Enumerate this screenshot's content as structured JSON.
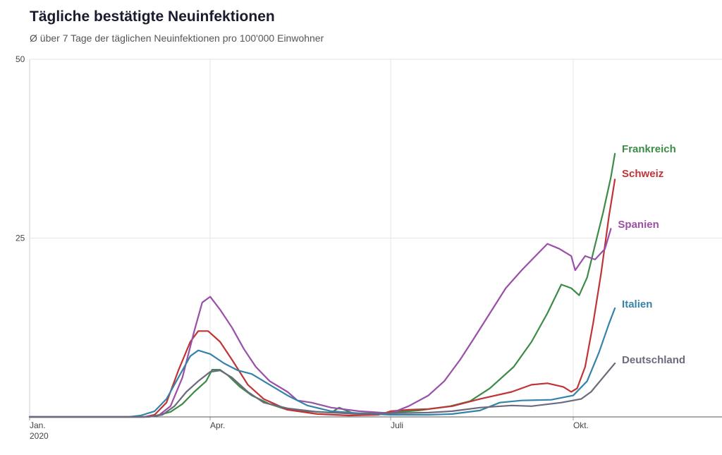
{
  "title": "Tägliche bestätigte Neuinfektionen",
  "subtitle": "Ø über 7 Tage der täglichen Neuinfektionen pro 100'000 Einwohner",
  "chart_data": {
    "type": "line",
    "title": "Tägliche bestätigte Neuinfektionen",
    "subtitle": "Ø über 7 Tage der täglichen Neuinfektionen pro 100'000 Einwohner",
    "ylim": [
      0,
      50
    ],
    "y_ticks": [
      {
        "value": 25,
        "label": "25"
      },
      {
        "value": 50,
        "label": "50"
      }
    ],
    "xlim": [
      "2020-01-01",
      "2020-12-15"
    ],
    "x_ticks": [
      {
        "date": "2020-01-01",
        "label": "Jan.",
        "sublabel": "2020"
      },
      {
        "date": "2020-04-01",
        "label": "Apr."
      },
      {
        "date": "2020-07-01",
        "label": "Juli"
      },
      {
        "date": "2020-10-01",
        "label": "Okt."
      }
    ],
    "grid": true,
    "series": [
      {
        "name": "Frankreich",
        "color": "#3d8b47",
        "points": [
          [
            "2020-01-01",
            0
          ],
          [
            "2020-02-28",
            0
          ],
          [
            "2020-03-05",
            0.2
          ],
          [
            "2020-03-12",
            0.7
          ],
          [
            "2020-03-18",
            1.8
          ],
          [
            "2020-03-24",
            3.5
          ],
          [
            "2020-03-30",
            5.0
          ],
          [
            "2020-04-02",
            6.6
          ],
          [
            "2020-04-06",
            6.6
          ],
          [
            "2020-04-10",
            5.8
          ],
          [
            "2020-04-16",
            4.2
          ],
          [
            "2020-04-22",
            3.0
          ],
          [
            "2020-05-01",
            1.8
          ],
          [
            "2020-05-10",
            1.0
          ],
          [
            "2020-05-20",
            0.8
          ],
          [
            "2020-06-01",
            0.6
          ],
          [
            "2020-06-05",
            1.3
          ],
          [
            "2020-06-12",
            0.5
          ],
          [
            "2020-06-20",
            0.5
          ],
          [
            "2020-07-01",
            0.6
          ],
          [
            "2020-07-15",
            0.9
          ],
          [
            "2020-07-31",
            1.5
          ],
          [
            "2020-08-10",
            2.2
          ],
          [
            "2020-08-20",
            4.0
          ],
          [
            "2020-09-01",
            7.0
          ],
          [
            "2020-09-10",
            10.5
          ],
          [
            "2020-09-18",
            14.5
          ],
          [
            "2020-09-25",
            18.5
          ],
          [
            "2020-09-30",
            18.0
          ],
          [
            "2020-10-04",
            17.0
          ],
          [
            "2020-10-08",
            19.5
          ],
          [
            "2020-10-12",
            24.0
          ],
          [
            "2020-10-16",
            28.5
          ],
          [
            "2020-10-20",
            33.5
          ],
          [
            "2020-10-22",
            36.8
          ]
        ]
      },
      {
        "name": "Schweiz",
        "color": "#c03436",
        "points": [
          [
            "2020-01-01",
            0
          ],
          [
            "2020-02-28",
            0
          ],
          [
            "2020-03-04",
            0.3
          ],
          [
            "2020-03-10",
            2.0
          ],
          [
            "2020-03-16",
            6.5
          ],
          [
            "2020-03-22",
            10.5
          ],
          [
            "2020-03-26",
            12.0
          ],
          [
            "2020-03-31",
            12.0
          ],
          [
            "2020-04-06",
            10.5
          ],
          [
            "2020-04-12",
            8.0
          ],
          [
            "2020-04-20",
            4.5
          ],
          [
            "2020-04-28",
            2.5
          ],
          [
            "2020-05-10",
            1.0
          ],
          [
            "2020-05-25",
            0.4
          ],
          [
            "2020-06-10",
            0.2
          ],
          [
            "2020-06-25",
            0.3
          ],
          [
            "2020-07-01",
            0.8
          ],
          [
            "2020-07-10",
            1.0
          ],
          [
            "2020-07-20",
            1.1
          ],
          [
            "2020-08-01",
            1.5
          ],
          [
            "2020-08-15",
            2.5
          ],
          [
            "2020-08-31",
            3.5
          ],
          [
            "2020-09-10",
            4.5
          ],
          [
            "2020-09-18",
            4.7
          ],
          [
            "2020-09-26",
            4.2
          ],
          [
            "2020-09-30",
            3.5
          ],
          [
            "2020-10-03",
            4.0
          ],
          [
            "2020-10-07",
            7.0
          ],
          [
            "2020-10-11",
            13.0
          ],
          [
            "2020-10-15",
            20.0
          ],
          [
            "2020-10-19",
            28.0
          ],
          [
            "2020-10-22",
            33.2
          ]
        ]
      },
      {
        "name": "Spanien",
        "color": "#9a4fa8",
        "points": [
          [
            "2020-01-01",
            0
          ],
          [
            "2020-02-28",
            0
          ],
          [
            "2020-03-06",
            0.2
          ],
          [
            "2020-03-12",
            1.5
          ],
          [
            "2020-03-18",
            5.5
          ],
          [
            "2020-03-24",
            12.0
          ],
          [
            "2020-03-28",
            16.0
          ],
          [
            "2020-04-01",
            16.8
          ],
          [
            "2020-04-06",
            15.0
          ],
          [
            "2020-04-12",
            12.5
          ],
          [
            "2020-04-18",
            9.5
          ],
          [
            "2020-04-24",
            7.0
          ],
          [
            "2020-05-01",
            5.0
          ],
          [
            "2020-05-10",
            3.5
          ],
          [
            "2020-05-15",
            2.3
          ],
          [
            "2020-05-22",
            2.0
          ],
          [
            "2020-06-01",
            1.3
          ],
          [
            "2020-06-15",
            0.8
          ],
          [
            "2020-07-01",
            0.5
          ],
          [
            "2020-07-10",
            1.5
          ],
          [
            "2020-07-20",
            3.0
          ],
          [
            "2020-07-28",
            5.0
          ],
          [
            "2020-08-05",
            8.0
          ],
          [
            "2020-08-12",
            11.0
          ],
          [
            "2020-08-20",
            14.5
          ],
          [
            "2020-08-28",
            18.0
          ],
          [
            "2020-09-05",
            20.5
          ],
          [
            "2020-09-12",
            22.5
          ],
          [
            "2020-09-18",
            24.2
          ],
          [
            "2020-09-24",
            23.5
          ],
          [
            "2020-09-30",
            22.5
          ],
          [
            "2020-10-02",
            20.5
          ],
          [
            "2020-10-07",
            22.5
          ],
          [
            "2020-10-12",
            22.0
          ],
          [
            "2020-10-17",
            23.5
          ],
          [
            "2020-10-20",
            26.3
          ]
        ]
      },
      {
        "name": "Italien",
        "color": "#3583a8",
        "points": [
          [
            "2020-01-01",
            0
          ],
          [
            "2020-02-20",
            0
          ],
          [
            "2020-02-26",
            0.2
          ],
          [
            "2020-03-04",
            0.8
          ],
          [
            "2020-03-10",
            2.5
          ],
          [
            "2020-03-16",
            5.5
          ],
          [
            "2020-03-22",
            8.5
          ],
          [
            "2020-03-26",
            9.3
          ],
          [
            "2020-04-01",
            8.8
          ],
          [
            "2020-04-08",
            7.5
          ],
          [
            "2020-04-15",
            6.5
          ],
          [
            "2020-04-22",
            6.0
          ],
          [
            "2020-05-01",
            4.5
          ],
          [
            "2020-05-10",
            3.0
          ],
          [
            "2020-05-20",
            1.6
          ],
          [
            "2020-06-01",
            0.8
          ],
          [
            "2020-06-15",
            0.5
          ],
          [
            "2020-07-01",
            0.3
          ],
          [
            "2020-07-20",
            0.3
          ],
          [
            "2020-08-01",
            0.4
          ],
          [
            "2020-08-15",
            0.9
          ],
          [
            "2020-08-25",
            2.0
          ],
          [
            "2020-09-05",
            2.3
          ],
          [
            "2020-09-20",
            2.4
          ],
          [
            "2020-10-01",
            3.0
          ],
          [
            "2020-10-08",
            5.0
          ],
          [
            "2020-10-14",
            9.0
          ],
          [
            "2020-10-19",
            13.0
          ],
          [
            "2020-10-22",
            15.2
          ]
        ]
      },
      {
        "name": "Deutschland",
        "color": "#6b6b7d",
        "points": [
          [
            "2020-01-01",
            0
          ],
          [
            "2020-03-01",
            0
          ],
          [
            "2020-03-08",
            0.3
          ],
          [
            "2020-03-14",
            1.5
          ],
          [
            "2020-03-20",
            3.5
          ],
          [
            "2020-03-26",
            5.0
          ],
          [
            "2020-04-01",
            6.3
          ],
          [
            "2020-04-06",
            6.5
          ],
          [
            "2020-04-12",
            5.5
          ],
          [
            "2020-04-20",
            3.5
          ],
          [
            "2020-04-28",
            2.0
          ],
          [
            "2020-05-10",
            1.2
          ],
          [
            "2020-05-25",
            0.7
          ],
          [
            "2020-06-15",
            0.4
          ],
          [
            "2020-07-01",
            0.5
          ],
          [
            "2020-07-20",
            0.6
          ],
          [
            "2020-08-01",
            0.8
          ],
          [
            "2020-08-15",
            1.3
          ],
          [
            "2020-08-31",
            1.6
          ],
          [
            "2020-09-10",
            1.5
          ],
          [
            "2020-09-25",
            2.0
          ],
          [
            "2020-10-05",
            2.5
          ],
          [
            "2020-10-10",
            3.5
          ],
          [
            "2020-10-16",
            5.5
          ],
          [
            "2020-10-22",
            7.5
          ]
        ]
      }
    ],
    "end_labels": [
      {
        "series": "Frankreich",
        "text": "Frankreich",
        "color": "#3d8b47",
        "value": 37.5
      },
      {
        "series": "Schweiz",
        "text": "Schweiz",
        "color": "#c03436",
        "value": 34.0
      },
      {
        "series": "Spanien",
        "text": "Spanien",
        "color": "#9a4fa8",
        "value": 26.9
      },
      {
        "series": "Italien",
        "text": "Italien",
        "color": "#3583a8",
        "value": 15.8
      },
      {
        "series": "Deutschland",
        "text": "Deutschland",
        "color": "#6b6b7d",
        "value": 8.0
      }
    ]
  }
}
